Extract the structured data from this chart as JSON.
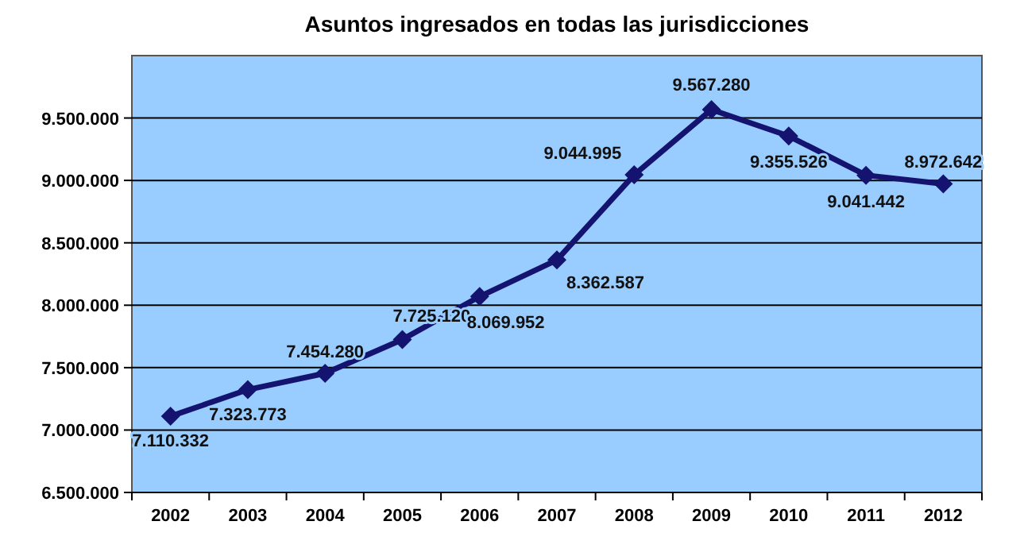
{
  "chart_data": {
    "type": "line",
    "title": "Asuntos ingresados en todas las jurisdicciones",
    "categories": [
      "2002",
      "2003",
      "2004",
      "2005",
      "2006",
      "2007",
      "2008",
      "2009",
      "2010",
      "2011",
      "2012"
    ],
    "series": [
      {
        "color": "#141470",
        "values": [
          7110332,
          7323773,
          7454280,
          7725120,
          8069952,
          8362587,
          9044995,
          9567280,
          9355526,
          9041442,
          8972642
        ],
        "value_labels": [
          "7.110.332",
          "7.323.773",
          "7.454.280",
          "7.725.120",
          "8.069.952",
          "8.362.587",
          "9.044.995",
          "9.567.280",
          "9.355.526",
          "9.041.442",
          "8.972.642"
        ]
      }
    ],
    "ylim": [
      6500000,
      10000000
    ],
    "yticks": [
      {
        "value": 6500000,
        "label": "6.500.000"
      },
      {
        "value": 7000000,
        "label": "7.000.000"
      },
      {
        "value": 7500000,
        "label": "7.500.000"
      },
      {
        "value": 8000000,
        "label": "8.000.000"
      },
      {
        "value": 8500000,
        "label": "8.500.000"
      },
      {
        "value": 9000000,
        "label": "9.000.000"
      },
      {
        "value": 9500000,
        "label": "9.500.000"
      }
    ],
    "grid": "y",
    "marker": "diamond",
    "line_style": "solid"
  }
}
